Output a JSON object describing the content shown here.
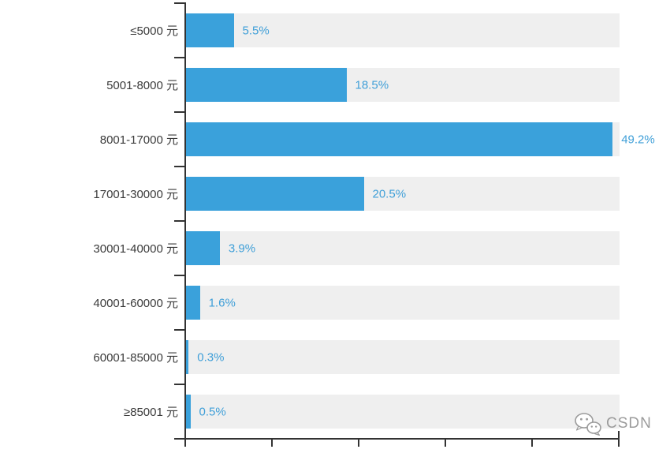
{
  "chart_data": {
    "type": "bar",
    "orientation": "horizontal",
    "title": "",
    "xlabel": "",
    "ylabel": "",
    "categories": [
      "≤5000 元",
      "5001-8000 元",
      "8001-17000 元",
      "17001-30000 元",
      "30001-40000 元",
      "40001-60000 元",
      "60001-85000 元",
      "≥85001 元"
    ],
    "values": [
      5.5,
      18.5,
      49.2,
      20.5,
      3.9,
      1.6,
      0.3,
      0.5
    ],
    "value_labels": [
      "5.5%",
      "18.5%",
      "49.2%",
      "20.5%",
      "3.9%",
      "1.6%",
      "0.3%",
      "0.5%"
    ],
    "xlim": [
      0,
      50
    ],
    "x_tick_step": 10,
    "grid": false,
    "legend": "none",
    "colors": {
      "bar": "#3aa1db",
      "track": "#efefef",
      "axis": "#333333",
      "category_label": "#3b3b3b",
      "value_label": "#3f9fd8"
    }
  },
  "watermark": {
    "text": "CSDN",
    "icon": "wechat-icon",
    "color": "#9b9b9b"
  }
}
